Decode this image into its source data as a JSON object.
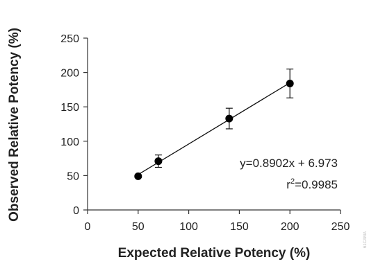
{
  "chart_data": {
    "type": "scatter",
    "xlabel": "Expected Relative Potency (%)",
    "ylabel": "Observed Relative Potency (%)",
    "xlim": [
      0,
      250
    ],
    "ylim": [
      0,
      250
    ],
    "xticks": [
      "0",
      "50",
      "100",
      "150",
      "200",
      "250"
    ],
    "yticks": [
      "0",
      "50",
      "100",
      "150",
      "200",
      "250"
    ],
    "grid": false,
    "points": [
      {
        "x": 50,
        "y": 49,
        "err": 2
      },
      {
        "x": 70,
        "y": 71,
        "err": 9
      },
      {
        "x": 140,
        "y": 133,
        "err": 15
      },
      {
        "x": 200,
        "y": 184,
        "err": 21
      }
    ],
    "trendline": {
      "slope": 0.8902,
      "intercept": 6.973,
      "x_range": [
        50,
        200
      ]
    },
    "annotations": {
      "equation": "y=0.8902x + 6.973",
      "r2_prefix": "r",
      "r2_sup": "2",
      "r2_value": "=0.9985"
    },
    "watermark": "61CAMA"
  }
}
